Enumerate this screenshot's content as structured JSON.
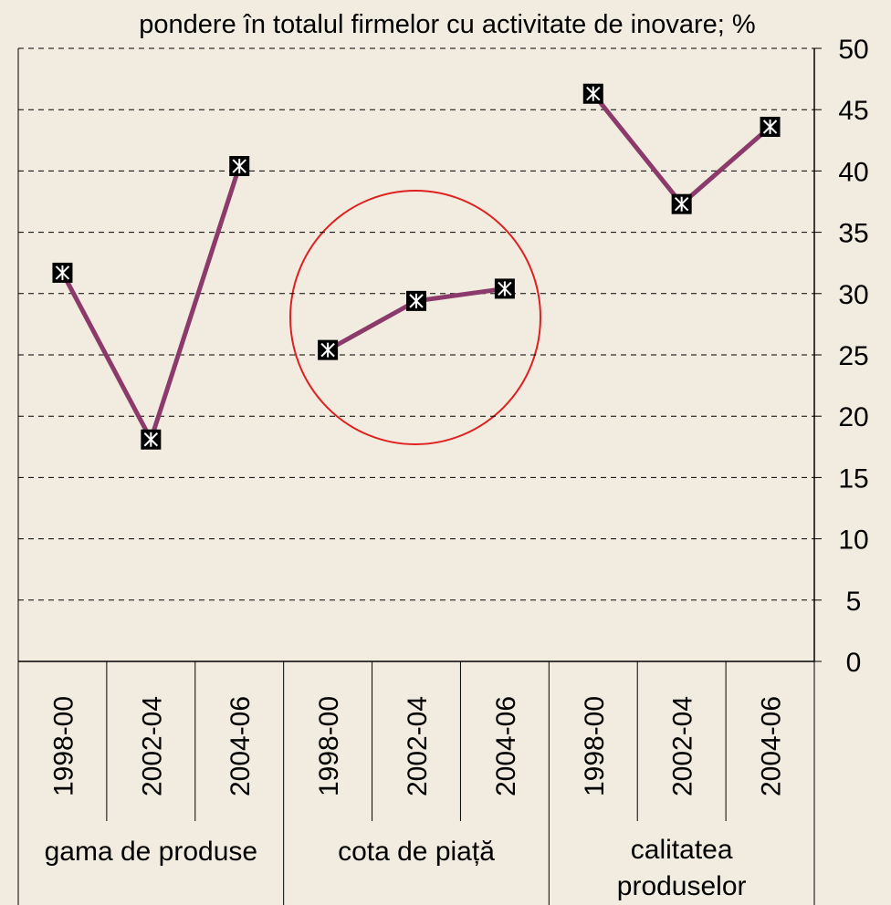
{
  "chart_data": {
    "type": "line",
    "title": "pondere în totalul firmelor cu activitate de inovare; %",
    "color": "#8b3a6b",
    "groups": [
      {
        "name": "gama de produse",
        "categories": [
          "1998-00",
          "2002-04",
          "2004-06"
        ],
        "values": [
          31.7,
          18.1,
          40.4
        ]
      },
      {
        "name": "cota de piață",
        "categories": [
          "1998-00",
          "2002-04",
          "2004-06"
        ],
        "values": [
          25.4,
          29.4,
          30.4
        ]
      },
      {
        "name": "calitatea produselor",
        "categories": [
          "1998-00",
          "2002-04",
          "2004-06"
        ],
        "values": [
          46.3,
          37.3,
          43.6
        ]
      }
    ],
    "ylim": [
      0,
      50
    ],
    "yticks": [
      0,
      5,
      10,
      15,
      20,
      25,
      30,
      35,
      40,
      45,
      50
    ],
    "grid": true
  }
}
